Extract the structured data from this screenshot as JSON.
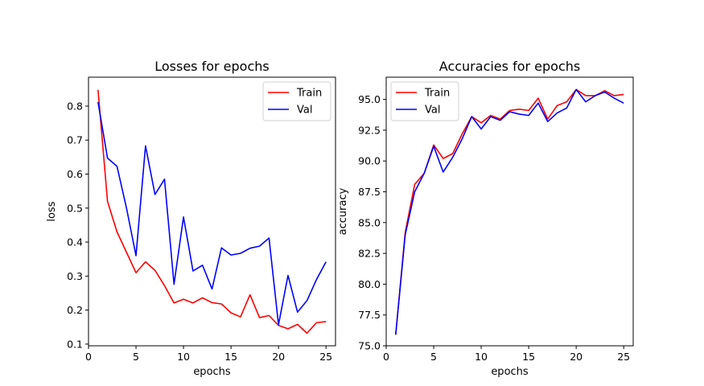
{
  "chart_data": [
    {
      "type": "line",
      "title": "Losses for epochs",
      "xlabel": "epochs",
      "ylabel": "loss",
      "xlim": [
        0.0,
        26.0
      ],
      "ylim": [
        0.095,
        0.885
      ],
      "xticks": [
        0,
        5,
        10,
        15,
        20,
        25
      ],
      "yticks": [
        0.1,
        0.2,
        0.3,
        0.4,
        0.5,
        0.6,
        0.7,
        0.8
      ],
      "ytick_format": "1",
      "legend_position": "top-right",
      "grid": false,
      "x": [
        1,
        2,
        3,
        4,
        5,
        6,
        7,
        8,
        9,
        10,
        11,
        12,
        13,
        14,
        15,
        16,
        17,
        18,
        19,
        20,
        21,
        22,
        23,
        24,
        25
      ],
      "series": [
        {
          "name": "Train",
          "color": "#ff0000",
          "values": [
            0.848,
            0.52,
            0.43,
            0.37,
            0.31,
            0.342,
            0.317,
            0.272,
            0.221,
            0.232,
            0.221,
            0.236,
            0.222,
            0.218,
            0.192,
            0.18,
            0.245,
            0.178,
            0.184,
            0.155,
            0.145,
            0.158,
            0.132,
            0.163,
            0.166
          ]
        },
        {
          "name": "Val",
          "color": "#0000ff",
          "values": [
            0.812,
            0.647,
            0.623,
            0.5,
            0.36,
            0.683,
            0.54,
            0.585,
            0.276,
            0.474,
            0.315,
            0.332,
            0.262,
            0.383,
            0.362,
            0.367,
            0.382,
            0.388,
            0.412,
            0.157,
            0.302,
            0.194,
            0.228,
            0.29,
            0.342
          ]
        }
      ]
    },
    {
      "type": "line",
      "title": "Accuracies for epochs",
      "xlabel": "epochs",
      "ylabel": "accuracy",
      "xlim": [
        0.0,
        26.0
      ],
      "ylim": [
        75.0,
        96.8
      ],
      "xticks": [
        0,
        5,
        10,
        15,
        20,
        25
      ],
      "yticks": [
        75.0,
        77.5,
        80.0,
        82.5,
        85.0,
        87.5,
        90.0,
        92.5,
        95.0
      ],
      "ytick_format": "1",
      "legend_position": "top-left",
      "grid": false,
      "x": [
        1,
        2,
        3,
        4,
        5,
        6,
        7,
        8,
        9,
        10,
        11,
        12,
        13,
        14,
        15,
        16,
        17,
        18,
        19,
        20,
        21,
        22,
        23,
        24,
        25
      ],
      "series": [
        {
          "name": "Train",
          "color": "#ff0000",
          "values": [
            75.9,
            84.2,
            88.1,
            89.0,
            91.3,
            90.2,
            90.6,
            92.2,
            93.6,
            93.1,
            93.7,
            93.4,
            94.1,
            94.2,
            94.1,
            95.1,
            93.4,
            94.5,
            94.8,
            95.8,
            95.3,
            95.3,
            95.7,
            95.3,
            95.4
          ]
        },
        {
          "name": "Val",
          "color": "#0000ff",
          "values": [
            75.9,
            84.0,
            87.5,
            89.0,
            91.2,
            89.1,
            90.3,
            91.8,
            93.6,
            92.6,
            93.6,
            93.3,
            94.0,
            93.8,
            93.7,
            94.7,
            93.2,
            93.9,
            94.3,
            95.8,
            94.8,
            95.3,
            95.6,
            95.1,
            94.7
          ]
        }
      ]
    }
  ]
}
